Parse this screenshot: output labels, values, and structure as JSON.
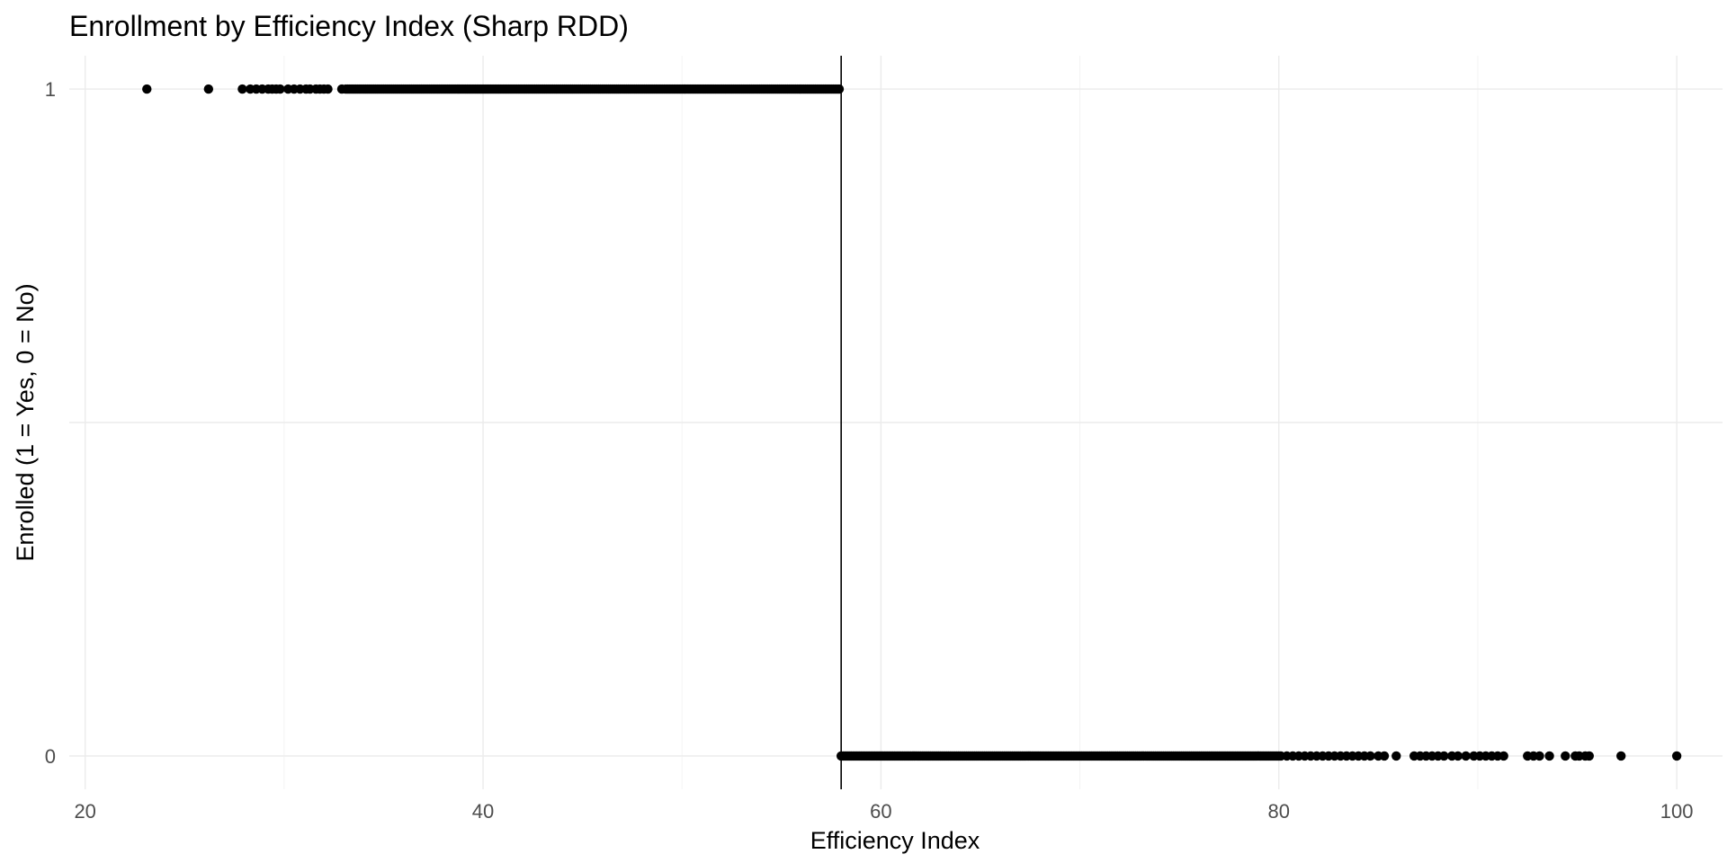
{
  "chart_data": {
    "type": "scatter",
    "title": "Enrollment by Efficiency Index (Sharp RDD)",
    "xlabel": "Efficiency Index",
    "ylabel": "Enrolled (1 = Yes, 0 = No)",
    "xlim": [
      19.2,
      102.3
    ],
    "ylim": [
      -0.05,
      1.05
    ],
    "x_ticks": [
      20,
      40,
      60,
      80,
      100
    ],
    "y_ticks": [
      0,
      1
    ],
    "grid": true,
    "cutoff": 58,
    "point_color": "#000000",
    "series": [
      {
        "y": 1,
        "x": [
          23.1,
          26.2,
          27.9,
          28.3,
          28.6,
          28.9,
          29.2,
          29.4,
          29.6,
          29.8,
          30.2,
          30.5,
          30.8,
          31.1,
          31.3,
          31.6,
          31.8,
          32.0,
          32.2,
          32.9
        ],
        "dense_segment": [
          33.1,
          57.9
        ]
      },
      {
        "y": 0,
        "x": [
          80.1,
          80.4,
          80.7,
          81.0,
          81.3,
          81.6,
          81.9,
          82.2,
          82.5,
          82.8,
          83.1,
          83.4,
          83.7,
          84.0,
          84.3,
          84.6,
          85.0,
          85.3,
          85.9,
          86.8,
          87.1,
          87.4,
          87.7,
          88.0,
          88.3,
          88.7,
          89.0,
          89.4,
          89.8,
          90.1,
          90.4,
          90.7,
          91.0,
          91.3,
          92.5,
          92.8,
          93.1,
          93.6,
          94.4,
          94.9,
          95.1,
          95.4,
          95.6,
          97.2,
          100.0
        ],
        "dense_segment": [
          58.0,
          80.0
        ]
      }
    ]
  }
}
